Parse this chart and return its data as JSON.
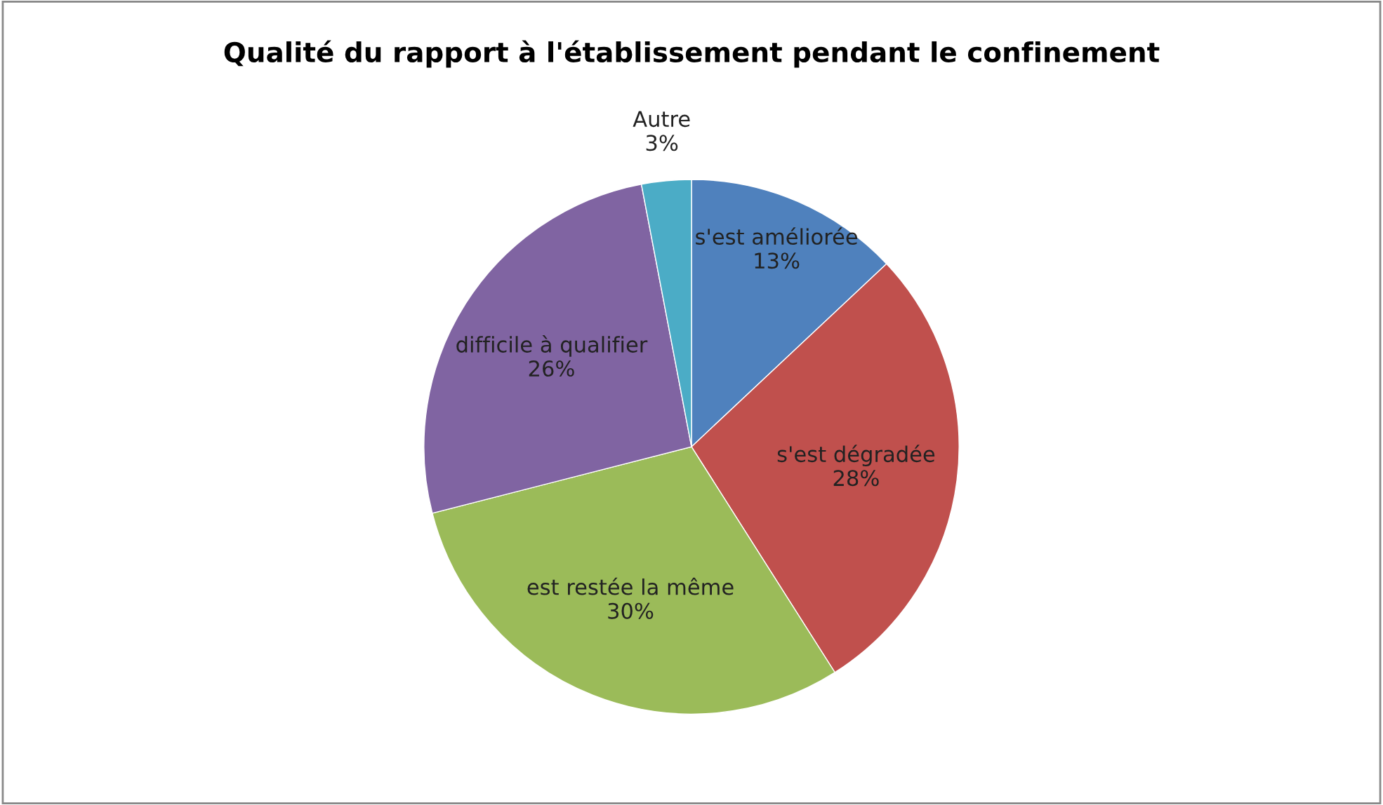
{
  "chart_data": {
    "type": "pie",
    "title": "Qualité du rapport à l'établissement pendant le confinement",
    "categories": [
      "s'est améliorée",
      "s'est dégradée",
      "est restée la même",
      "difficile à qualifier",
      "Autre"
    ],
    "values": [
      13,
      28,
      30,
      26,
      3
    ],
    "value_labels": [
      "13%",
      "28%",
      "30%",
      "26%",
      "3%"
    ],
    "colors": [
      "#4f81bd",
      "#c0504d",
      "#9bbb59",
      "#8064a2",
      "#4bacc6"
    ],
    "legend": false
  }
}
